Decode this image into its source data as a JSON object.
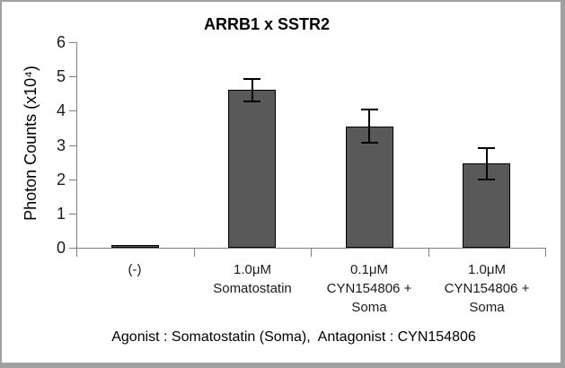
{
  "chart_data": {
    "type": "bar",
    "title": "ARRB1 x SSTR2",
    "ylabel": "Photon Counts (x10⁴)",
    "xlabel": "",
    "caption": "Agonist : Somatostatin (Soma),  Antagonist : CYN154806",
    "categories": [
      [
        "(-)"
      ],
      [
        "1.0μM",
        "Somatostatin"
      ],
      [
        "0.1μM",
        "CYN154806 +",
        "Soma"
      ],
      [
        "1.0μM",
        "CYN154806 +",
        "Soma"
      ]
    ],
    "values": [
      0.07,
      4.6,
      3.55,
      2.45
    ],
    "errors": [
      0,
      0.33,
      0.49,
      0.46
    ],
    "ylim": [
      0,
      6
    ],
    "y_ticks": [
      0,
      1,
      2,
      3,
      4,
      5,
      6
    ],
    "grid": false,
    "legend": false,
    "colors": {
      "bar_fill": "#595959",
      "bar_border": "#000000",
      "error_bar": "#000000",
      "axis": "#808080",
      "text": "#000000",
      "frame_border": "#a0a0a0"
    }
  }
}
